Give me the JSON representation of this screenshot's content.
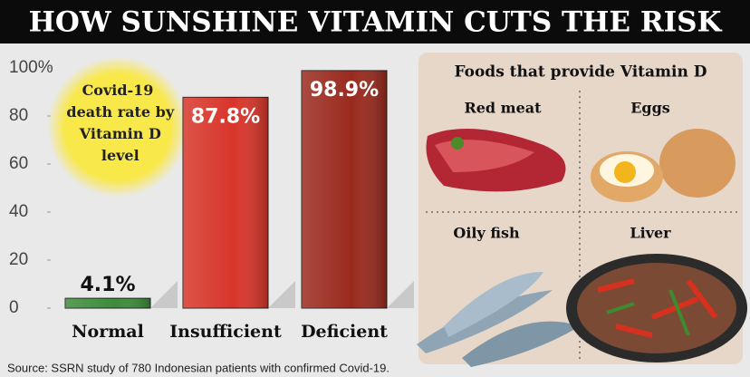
{
  "chart_data": {
    "type": "bar",
    "title": "HOW SUNSHINE VITAMIN CUTS THE RISK",
    "annotation": "Covid-19 death rate by Vitamin D level",
    "source": "Source: SSRN study of 780 Indonesian patients with confirmed Covid-19.",
    "categories": [
      "Normal",
      "Insufficient",
      "Deficient"
    ],
    "values": [
      4.1,
      87.8,
      98.9
    ],
    "value_labels": [
      "4.1%",
      "87.8%",
      "98.9%"
    ],
    "colors": [
      "#3d8b3a",
      "#d8352a",
      "#9a2a1e"
    ],
    "ylim": [
      0,
      100
    ],
    "yticks": [
      0,
      20,
      40,
      60,
      80,
      {
        "value": 100,
        "label": "100%"
      }
    ]
  },
  "food_panel": {
    "title": "Foods that provide Vitamin D",
    "items": [
      "Red meat",
      "Eggs",
      "Oily fish",
      "Liver"
    ]
  }
}
